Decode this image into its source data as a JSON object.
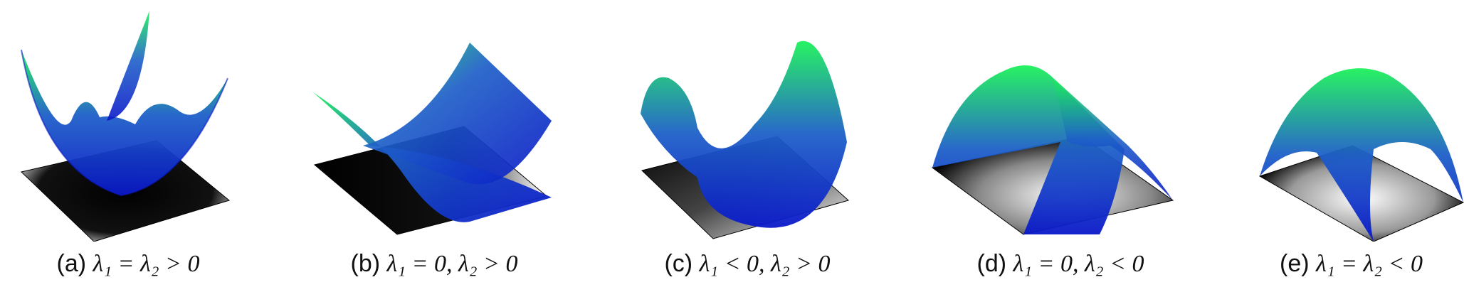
{
  "figure": {
    "panels": [
      {
        "tag": "(a)",
        "math": "λ₁ = λ₂ > 0"
      },
      {
        "tag": "(b)",
        "math": "λ₁ = 0, λ₂ > 0"
      },
      {
        "tag": "(c)",
        "math": "λ₁ < 0, λ₂ > 0"
      },
      {
        "tag": "(d)",
        "math": "λ₁ = 0, λ₂ < 0"
      },
      {
        "tag": "(e)",
        "math": "λ₁ = λ₂ < 0"
      }
    ]
  },
  "colors": {
    "surface_top": "#1cf25a",
    "surface_mid": "#1e5fc8",
    "surface_bottom": "#0a18c8",
    "base_dark": "#000000",
    "base_light": "#ffffff"
  }
}
